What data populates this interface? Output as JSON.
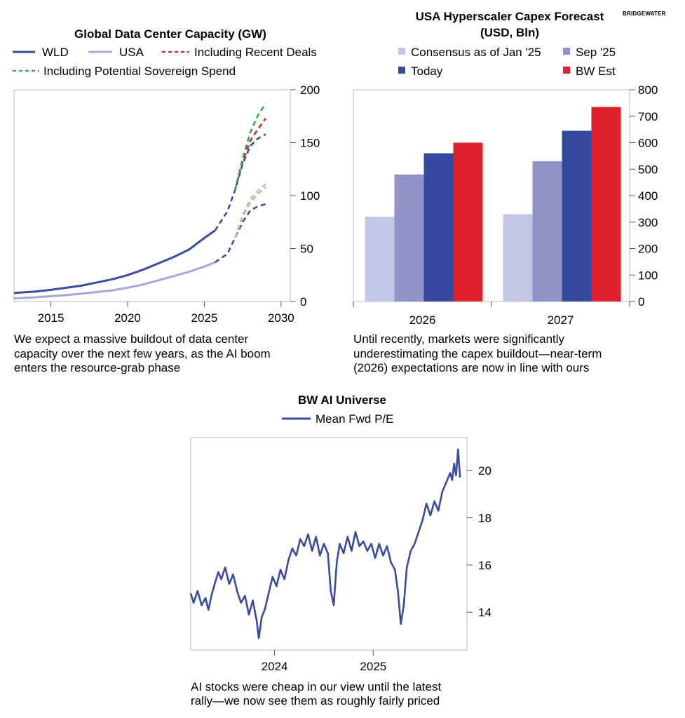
{
  "brand": "BRIDGEWATER",
  "chart_data": [
    {
      "id": "capacity",
      "type": "line",
      "title": "Global Data Center Capacity (GW)",
      "xlim": [
        2012.6,
        2030.6
      ],
      "ylim": [
        0,
        200
      ],
      "x_ticks": [
        2015,
        2020,
        2025,
        2030
      ],
      "y_ticks": [
        0,
        50,
        100,
        150,
        200
      ],
      "legend": [
        {
          "label": "WLD",
          "color": "#3a4a9c",
          "style": "solid"
        },
        {
          "label": "USA",
          "color": "#a3a8d6",
          "style": "solid"
        },
        {
          "label": "Including Recent Deals",
          "color": "#e0242b",
          "style": "dashed"
        },
        {
          "label": "Including Potential Sovereign Spend",
          "color": "#2ea84a",
          "style": "dashed"
        }
      ],
      "series": [
        {
          "name": "WLD",
          "color": "#3a4a9c",
          "style": "solid",
          "x": [
            2012.6,
            2014,
            2015,
            2016,
            2017,
            2018,
            2019,
            2020,
            2021,
            2022,
            2023,
            2024,
            2025,
            2025.7
          ],
          "y": [
            8,
            9.5,
            11,
            13,
            15,
            18,
            21,
            25,
            30,
            36,
            42,
            49,
            60,
            67
          ]
        },
        {
          "name": "WLD forecast",
          "color": "#3a4a9c",
          "style": "dashed",
          "x": [
            2025.7,
            2026.5,
            2027,
            2027.5,
            2028,
            2028.5,
            2029
          ],
          "y": [
            67,
            85,
            105,
            130,
            147,
            154,
            158
          ]
        },
        {
          "name": "Including Recent Deals (WLD)",
          "color": "#e0242b",
          "style": "dashed",
          "x": [
            2027,
            2027.5,
            2028,
            2028.5,
            2029
          ],
          "y": [
            105,
            132,
            152,
            163,
            173
          ]
        },
        {
          "name": "Including Potential Sovereign Spend (WLD)",
          "color": "#2ea84a",
          "style": "dashed",
          "x": [
            2027,
            2027.5,
            2028,
            2028.5,
            2029
          ],
          "y": [
            105,
            135,
            160,
            176,
            187
          ]
        },
        {
          "name": "USA",
          "color": "#a3a8d6",
          "style": "solid",
          "x": [
            2012.6,
            2014,
            2015,
            2016,
            2017,
            2018,
            2019,
            2020,
            2021,
            2022,
            2023,
            2024,
            2025,
            2025.7
          ],
          "y": [
            3,
            4,
            5,
            6,
            7.5,
            9,
            10.5,
            13,
            16,
            20,
            24,
            28,
            33,
            37
          ]
        },
        {
          "name": "USA forecast",
          "color": "#3a4a9c",
          "style": "dashed",
          "x": [
            2025.7,
            2026.5,
            2027,
            2027.5,
            2028,
            2028.5,
            2029
          ],
          "y": [
            37,
            45,
            60,
            75,
            86,
            90,
            92
          ]
        },
        {
          "name": "Including Recent Deals (USA)",
          "color": "#f29a9a",
          "style": "dashed",
          "x": [
            2027,
            2027.5,
            2028,
            2028.5,
            2029
          ],
          "y": [
            60,
            80,
            94,
            102,
            108
          ]
        },
        {
          "name": "Including Potential Sovereign Spend (USA)",
          "color": "#a6d6a6",
          "style": "dashed",
          "x": [
            2027,
            2027.5,
            2028,
            2028.5,
            2029
          ],
          "y": [
            60,
            82,
            97,
            105,
            111
          ]
        }
      ],
      "caption": [
        "We expect a massive buildout of data center",
        "capacity over the next few years, as the AI boom",
        "enters the resource-grab phase"
      ]
    },
    {
      "id": "capex",
      "type": "bar",
      "title": [
        "USA Hyperscaler Capex Forecast",
        "(USD, Bln)"
      ],
      "categories": [
        "2026",
        "2027"
      ],
      "ylim": [
        0,
        800
      ],
      "y_ticks": [
        0,
        100,
        200,
        300,
        400,
        500,
        600,
        700,
        800
      ],
      "series": [
        {
          "name": "Consensus as of Jan '25",
          "color": "#c3c6e4",
          "values": [
            320,
            330
          ]
        },
        {
          "name": "Sep '25",
          "color": "#8f93c8",
          "values": [
            480,
            530
          ]
        },
        {
          "name": "Today",
          "color": "#34489e",
          "values": [
            560,
            645
          ]
        },
        {
          "name": "BW Est",
          "color": "#e0202a",
          "values": [
            600,
            735
          ]
        }
      ],
      "caption": [
        "Until recently, markets were significantly",
        "underestimating the capex buildout—near-term",
        "(2026) expectations are now in line with ours"
      ]
    },
    {
      "id": "pe",
      "type": "line",
      "title": "BW AI Universe",
      "xlim": [
        2023.15,
        2025.95
      ],
      "ylim": [
        12.4,
        21.4
      ],
      "x_ticks": [
        2024,
        2025
      ],
      "y_ticks": [
        14,
        16,
        18,
        20
      ],
      "series": [
        {
          "name": "Mean Fwd P/E",
          "color": "#3a4a9c",
          "x": [
            2023.15,
            2023.18,
            2023.22,
            2023.26,
            2023.3,
            2023.33,
            2023.36,
            2023.4,
            2023.43,
            2023.46,
            2023.5,
            2023.54,
            2023.58,
            2023.62,
            2023.66,
            2023.7,
            2023.74,
            2023.78,
            2023.82,
            2023.84,
            2023.87,
            2023.9,
            2023.94,
            2023.98,
            2024.02,
            2024.06,
            2024.1,
            2024.14,
            2024.18,
            2024.22,
            2024.26,
            2024.3,
            2024.34,
            2024.38,
            2024.42,
            2024.46,
            2024.5,
            2024.54,
            2024.57,
            2024.6,
            2024.63,
            2024.66,
            2024.7,
            2024.74,
            2024.78,
            2024.82,
            2024.86,
            2024.9,
            2024.94,
            2024.98,
            2025.02,
            2025.06,
            2025.1,
            2025.14,
            2025.18,
            2025.22,
            2025.25,
            2025.28,
            2025.31,
            2025.34,
            2025.38,
            2025.42,
            2025.46,
            2025.5,
            2025.54,
            2025.58,
            2025.62,
            2025.66,
            2025.7,
            2025.74,
            2025.78,
            2025.8,
            2025.82,
            2025.84,
            2025.86,
            2025.88
          ],
          "y": [
            14.8,
            14.4,
            14.9,
            14.3,
            14.6,
            14.1,
            14.7,
            15.3,
            15.7,
            15.4,
            15.9,
            15.2,
            15.6,
            14.9,
            14.4,
            14.7,
            13.9,
            14.5,
            13.6,
            12.9,
            13.8,
            14.1,
            14.8,
            15.5,
            15.1,
            15.8,
            15.4,
            16.2,
            16.7,
            16.4,
            17.1,
            16.8,
            17.3,
            16.6,
            17.2,
            16.4,
            16.9,
            16.5,
            14.9,
            14.3,
            16.1,
            16.9,
            16.5,
            17.2,
            16.6,
            17.4,
            16.8,
            17.0,
            16.6,
            16.9,
            16.3,
            16.9,
            16.4,
            16.8,
            16.1,
            15.8,
            14.9,
            13.5,
            14.3,
            15.9,
            16.6,
            16.9,
            17.4,
            17.9,
            18.6,
            18.1,
            18.7,
            18.3,
            19.1,
            19.5,
            19.9,
            19.6,
            20.3,
            19.8,
            20.9,
            19.7
          ]
        }
      ],
      "caption": [
        "AI stocks were cheap in our view until the latest",
        "rally—we now see them as roughly fairly priced"
      ]
    }
  ]
}
